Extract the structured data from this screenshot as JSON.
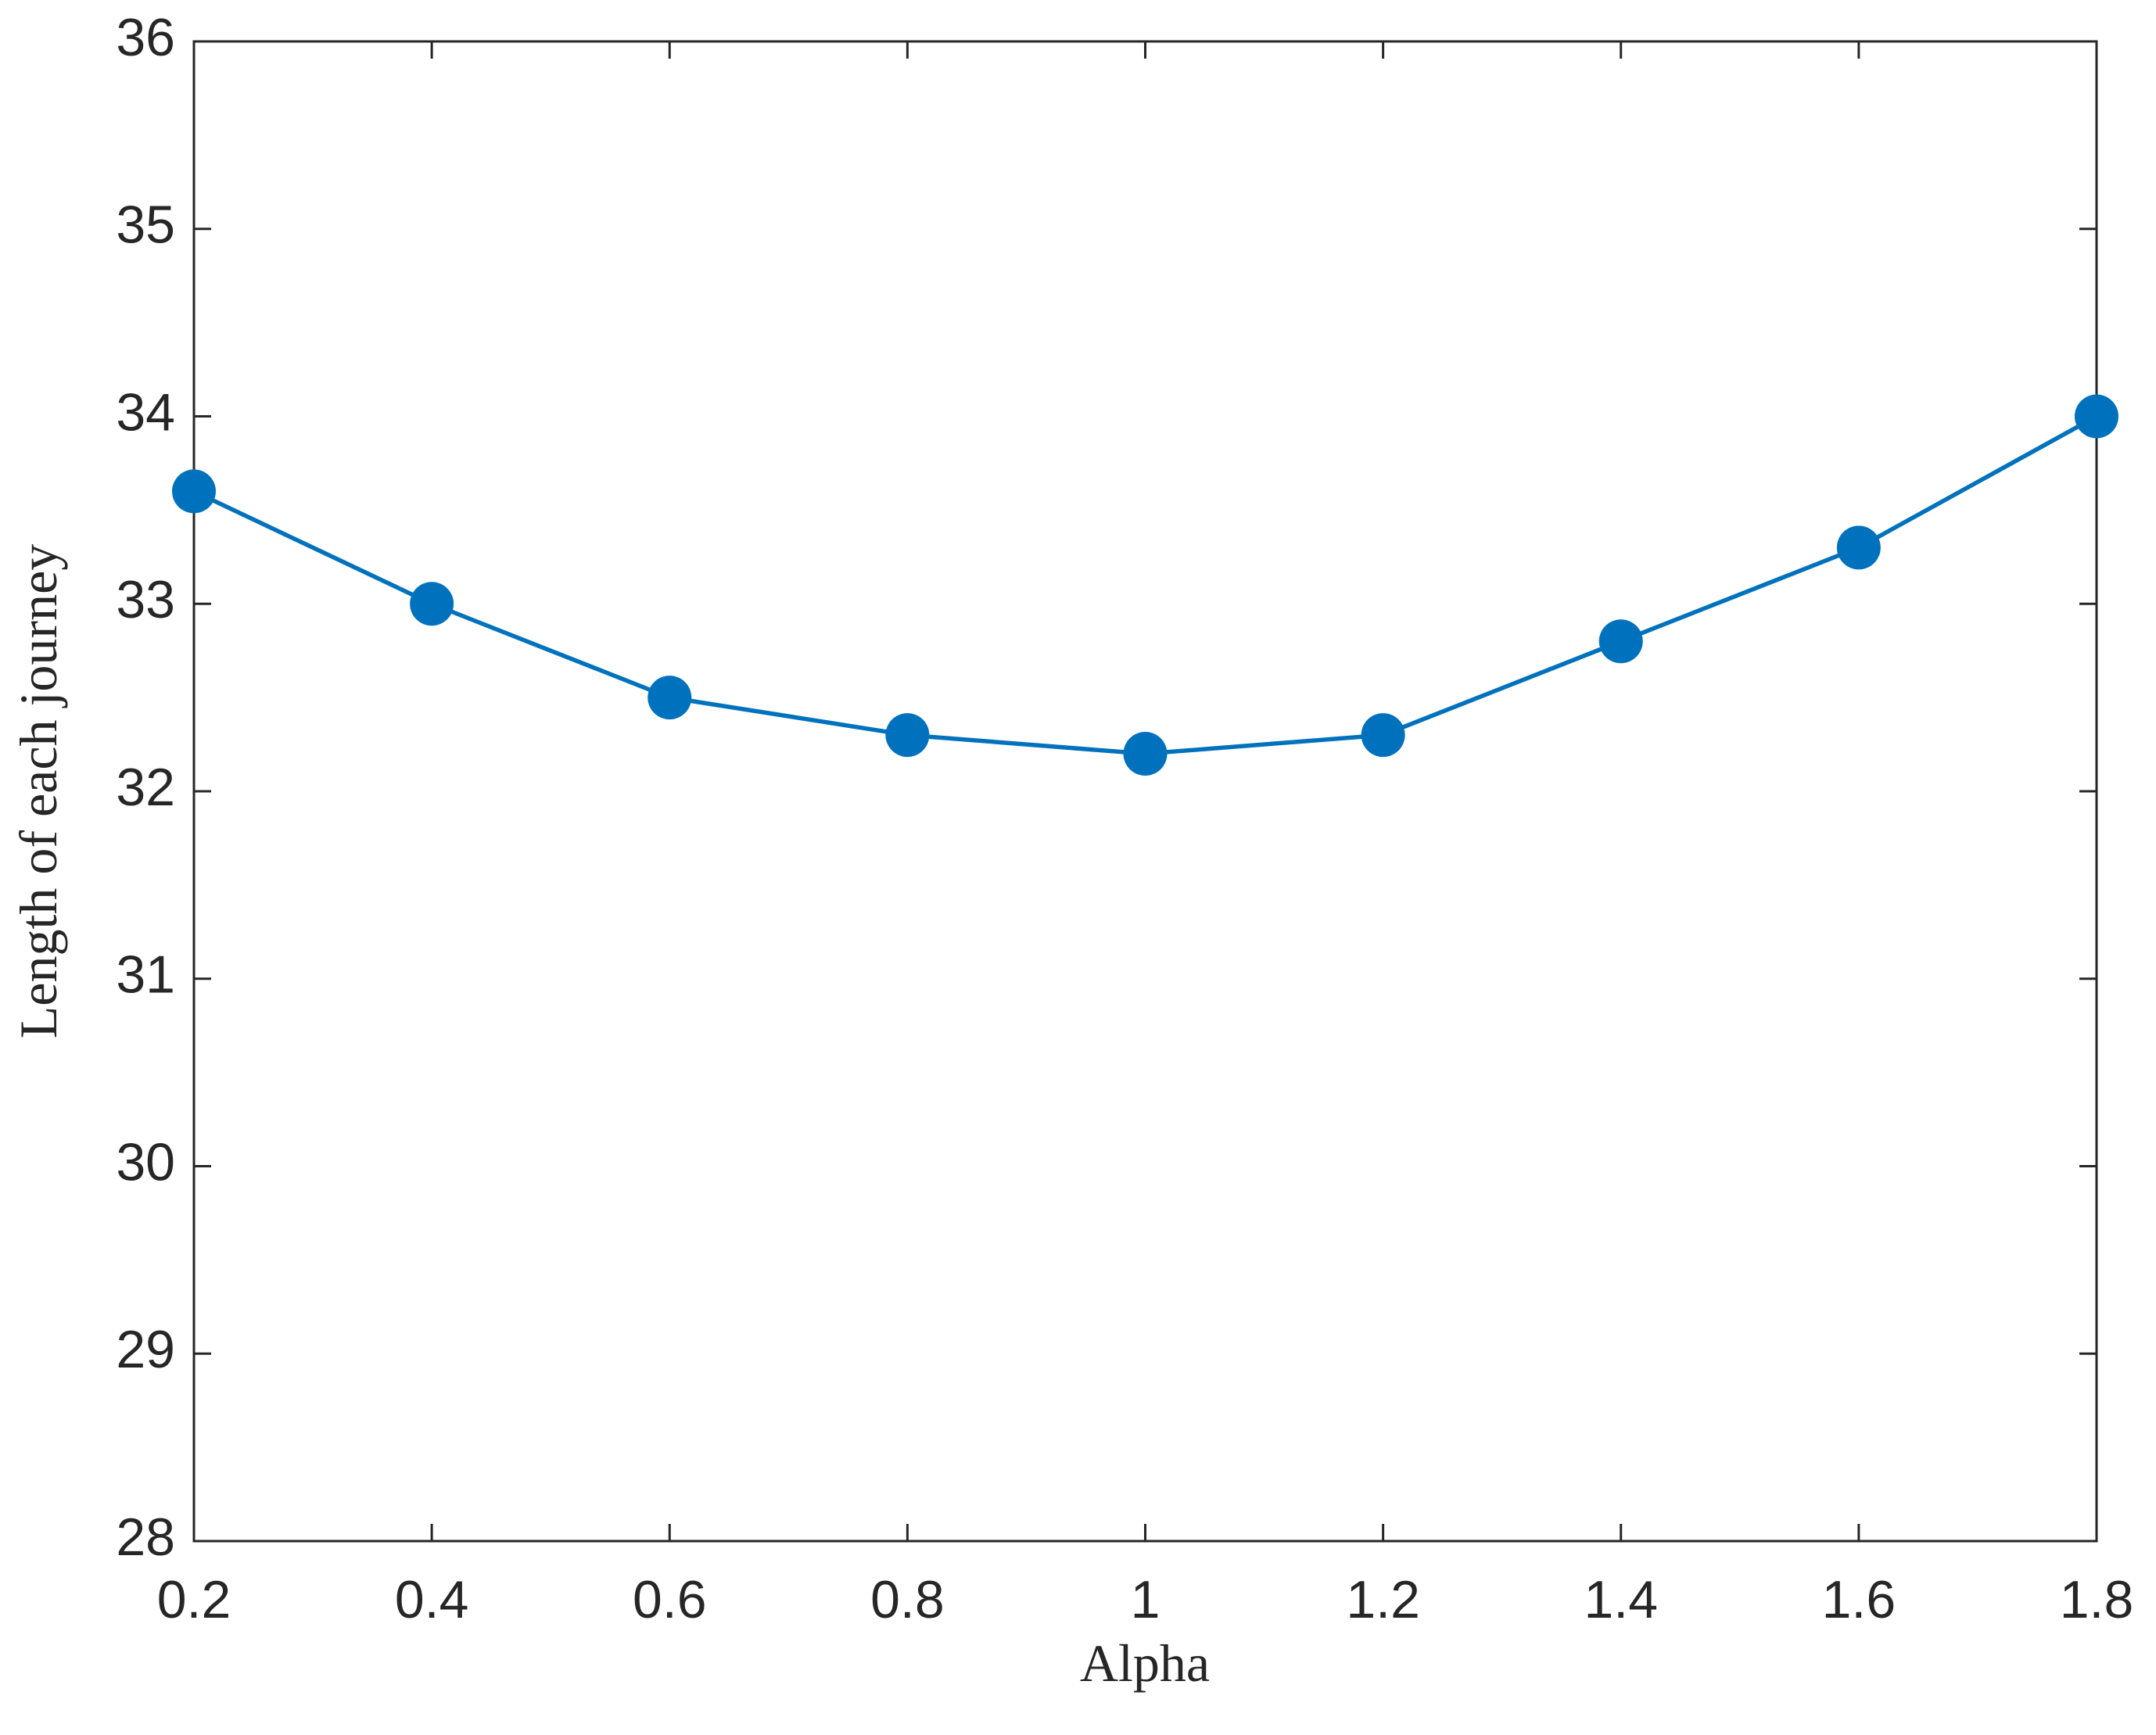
{
  "chart_data": {
    "type": "line",
    "x_label": "Alpha",
    "y_label": "Length of each journey",
    "x": [
      0.2,
      0.4,
      0.6,
      0.8,
      1,
      1.2,
      1.4,
      1.6,
      1.8
    ],
    "series": [
      {
        "color": "#0072bd",
        "values": [
          33.6,
          33.0,
          32.5,
          32.3,
          32.2,
          32.3,
          32.8,
          33.3,
          34.0
        ]
      }
    ],
    "xlim": [
      0.2,
      1.8
    ],
    "xticks": [
      0.2,
      0.4,
      0.6,
      0.8,
      1,
      1.2,
      1.4,
      1.6,
      1.8
    ],
    "ylim": [
      28,
      36
    ],
    "yticks": [
      28,
      29,
      30,
      31,
      32,
      33,
      34,
      35,
      36
    ],
    "grid": false,
    "markers": true
  }
}
